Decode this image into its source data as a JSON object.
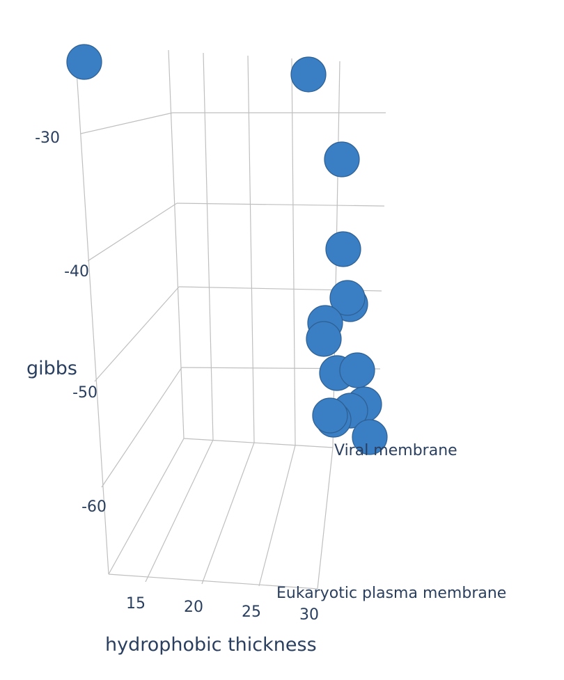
{
  "chart_data": {
    "type": "scatter3d",
    "x_axis": {
      "title": "hydrophobic thickness",
      "ticks": [
        15,
        20,
        25,
        30
      ]
    },
    "y_axis": {
      "title": "gibbs",
      "ticks": [
        -30,
        -40,
        -50,
        -60
      ]
    },
    "z_axis": {
      "title": "",
      "ticks": [
        "Viral membrane",
        "Eukaryotic plasma membrane"
      ]
    },
    "grid": true,
    "marker_color": "#3a7ec3",
    "points": [
      {
        "x": 13.5,
        "y": -23.5,
        "z": "Viral membrane"
      },
      {
        "x": 31.5,
        "y": -25.5,
        "z": "Viral membrane"
      },
      {
        "x": 32.5,
        "y": -32.5,
        "z": "Viral membrane"
      },
      {
        "x": 32.5,
        "y": -39.5,
        "z": "Viral membrane"
      },
      {
        "x": 32.5,
        "y": -44.0,
        "z": "Viral membrane"
      },
      {
        "x": 32.5,
        "y": -43.5,
        "z": "Viral membrane"
      },
      {
        "x": 31.0,
        "y": -46.5,
        "z": "Viral membrane"
      },
      {
        "x": 31.0,
        "y": -48.0,
        "z": "Viral membrane"
      },
      {
        "x": 31.5,
        "y": -51.5,
        "z": "Viral membrane"
      },
      {
        "x": 33.0,
        "y": -51.5,
        "z": "Viral membrane"
      },
      {
        "x": 33.5,
        "y": -54.5,
        "z": "Viral membrane"
      },
      {
        "x": 32.0,
        "y": -55.5,
        "z": "Viral membrane"
      },
      {
        "x": 31.0,
        "y": -56.0,
        "z": "Viral membrane"
      },
      {
        "x": 30.5,
        "y": -56.2,
        "z": "Viral membrane"
      },
      {
        "x": 34.0,
        "y": -57.5,
        "z": "Viral membrane"
      }
    ]
  }
}
